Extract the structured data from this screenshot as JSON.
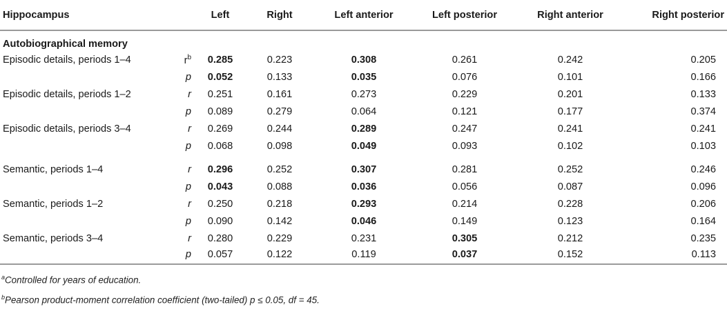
{
  "table": {
    "headers": {
      "label": "Hippocampus",
      "columns": [
        "Left",
        "Right",
        "Left anterior",
        "Left posterior",
        "Right anterior",
        "Right posterior"
      ]
    },
    "section_title": "Autobiographical memory",
    "rows": [
      {
        "label": "Episodic details, periods 1–4",
        "stat": "r",
        "stat_sup": "b",
        "values": [
          "0.285",
          "0.223",
          "0.308",
          "0.261",
          "0.242",
          "0.205"
        ]
      },
      {
        "label": "",
        "stat": "p",
        "stat_sup": "",
        "values": [
          "0.052",
          "0.133",
          "0.035",
          "0.076",
          "0.101",
          "0.166"
        ]
      },
      {
        "label": "Episodic details, periods 1–2",
        "stat": "r",
        "stat_sup": "",
        "values": [
          "0.251",
          "0.161",
          "0.273",
          "0.229",
          "0.201",
          "0.133"
        ]
      },
      {
        "label": "",
        "stat": "p",
        "stat_sup": "",
        "values": [
          "0.089",
          "0.279",
          "0.064",
          "0.121",
          "0.177",
          "0.374"
        ]
      },
      {
        "label": "Episodic details, periods 3–4",
        "stat": "r",
        "stat_sup": "",
        "values": [
          "0.269",
          "0.244",
          "0.289",
          "0.247",
          "0.241",
          "0.241"
        ]
      },
      {
        "label": "",
        "stat": "p",
        "stat_sup": "",
        "values": [
          "0.068",
          "0.098",
          "0.049",
          "0.093",
          "0.102",
          "0.103"
        ]
      },
      {
        "label": "Semantic, periods 1–4",
        "stat": "r",
        "stat_sup": "",
        "values": [
          "0.296",
          "0.252",
          "0.307",
          "0.281",
          "0.252",
          "0.246"
        ]
      },
      {
        "label": "",
        "stat": "p",
        "stat_sup": "",
        "values": [
          "0.043",
          "0.088",
          "0.036",
          "0.056",
          "0.087",
          "0.096"
        ]
      },
      {
        "label": "Semantic, periods 1–2",
        "stat": "r",
        "stat_sup": "",
        "values": [
          "0.250",
          "0.218",
          "0.293",
          "0.214",
          "0.228",
          "0.206"
        ]
      },
      {
        "label": "",
        "stat": "p",
        "stat_sup": "",
        "values": [
          "0.090",
          "0.142",
          "0.046",
          "0.149",
          "0.123",
          "0.164"
        ]
      },
      {
        "label": "Semantic, periods 3–4",
        "stat": "r",
        "stat_sup": "",
        "values": [
          "0.280",
          "0.229",
          "0.231",
          "0.305",
          "0.212",
          "0.235"
        ]
      },
      {
        "label": "",
        "stat": "p",
        "stat_sup": "",
        "values": [
          "0.057",
          "0.122",
          "0.119",
          "0.037",
          "0.152",
          "0.113"
        ]
      }
    ]
  },
  "footnotes": [
    {
      "mark": "a",
      "text": "Controlled for years of education."
    },
    {
      "mark": "b",
      "text": "Pearson product-moment correlation coefficient (two-tailed) p ≤ 0.05, df = 45."
    }
  ]
}
